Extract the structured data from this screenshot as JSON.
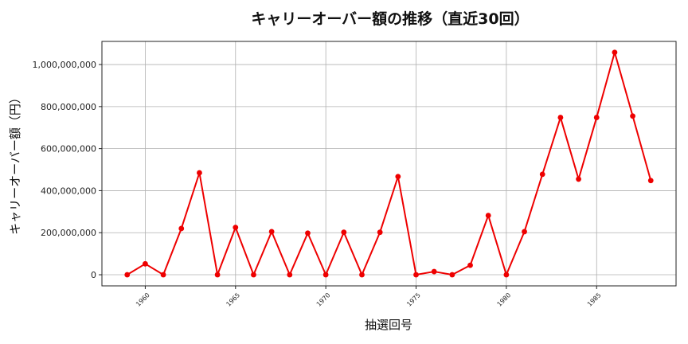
{
  "chart_data": {
    "type": "line",
    "title": "キャリーオーバー額の推移（直近30回）",
    "xlabel": "抽選回号",
    "ylabel": "キャリーオーバー額（円）",
    "x": [
      1959,
      1960,
      1961,
      1962,
      1963,
      1964,
      1965,
      1966,
      1967,
      1968,
      1969,
      1970,
      1971,
      1972,
      1973,
      1974,
      1975,
      1976,
      1977,
      1978,
      1979,
      1980,
      1981,
      1982,
      1983,
      1984,
      1985,
      1986,
      1987,
      1988
    ],
    "series": [
      {
        "values": [
          0,
          52000000,
          0,
          220000000,
          485000000,
          0,
          225000000,
          0,
          205000000,
          0,
          198000000,
          0,
          202000000,
          0,
          202000000,
          467000000,
          0,
          15000000,
          0,
          45000000,
          282000000,
          0,
          205000000,
          478000000,
          748000000,
          455000000,
          748000000,
          1058000000,
          755000000,
          448000000
        ],
        "color": "#ee0000"
      }
    ],
    "xlim": [
      1957.6,
      1989.4
    ],
    "ylim": [
      -52900000,
      1110000000
    ],
    "x_ticks": [
      1960,
      1965,
      1970,
      1975,
      1980,
      1985
    ],
    "x_tick_labels": [
      "1960",
      "1965",
      "1970",
      "1975",
      "1980",
      "1985"
    ],
    "y_ticks": [
      0,
      200000000,
      400000000,
      600000000,
      800000000,
      1000000000
    ],
    "y_tick_labels": [
      "0",
      "200,000,000",
      "400,000,000",
      "600,000,000",
      "800,000,000",
      "1,000,000,000"
    ],
    "grid": true,
    "legend": false
  }
}
